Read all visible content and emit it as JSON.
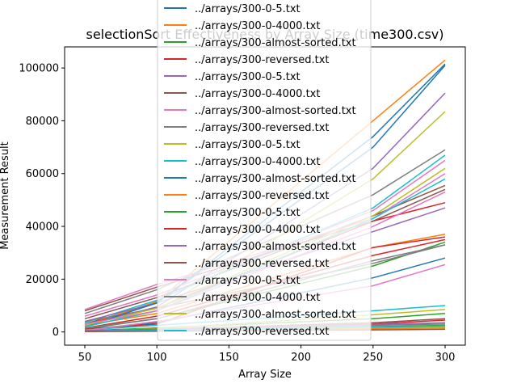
{
  "chart_data": {
    "type": "line",
    "title": "selectionSort Effectiveness by Array Size (time300.csv)",
    "xlabel": "Array Size",
    "ylabel": "Measurement Result",
    "x": [
      50,
      100,
      250,
      300
    ],
    "xlim": [
      36,
      314
    ],
    "ylim": [
      -5000,
      108000
    ],
    "xticks": [
      50,
      100,
      150,
      200,
      250,
      300
    ],
    "yticks": [
      0,
      20000,
      40000,
      60000,
      80000,
      100000
    ],
    "grid": false,
    "legend_position": "top-center",
    "series": [
      {
        "name": "../arrays/300-0-5.txt",
        "color": "#1f77b4",
        "values": [
          3000,
          11000,
          70000,
          101000
        ]
      },
      {
        "name": "../arrays/300-0-4000.txt",
        "color": "#ff7f0e",
        "values": [
          2500,
          11500,
          80000,
          103000
        ]
      },
      {
        "name": "../arrays/300-almost-sorted.txt",
        "color": "#2ca02c",
        "values": [
          1200,
          5000,
          25000,
          34000
        ]
      },
      {
        "name": "../arrays/300-reversed.txt",
        "color": "#d62728",
        "values": [
          3000,
          9000,
          42000,
          49000
        ]
      },
      {
        "name": "../arrays/300-0-5.txt",
        "color": "#9467bd",
        "values": [
          2500,
          9500,
          62000,
          90500
        ]
      },
      {
        "name": "../arrays/300-0-4000.txt",
        "color": "#8c564b",
        "values": [
          5000,
          13000,
          44000,
          55500
        ]
      },
      {
        "name": "../arrays/300-almost-sorted.txt",
        "color": "#e377c2",
        "values": [
          6000,
          14000,
          46000,
          65000
        ]
      },
      {
        "name": "../arrays/300-reversed.txt",
        "color": "#7f7f7f",
        "values": [
          7000,
          16000,
          52000,
          69000
        ]
      },
      {
        "name": "../arrays/300-0-5.txt",
        "color": "#bcbd22",
        "values": [
          2000,
          8000,
          58000,
          83500
        ]
      },
      {
        "name": "../arrays/300-0-4000.txt",
        "color": "#17becf",
        "values": [
          3500,
          12000,
          47000,
          67000
        ]
      },
      {
        "name": "../arrays/300-almost-sorted.txt",
        "color": "#1f77b4",
        "values": [
          1000,
          3500,
          20500,
          28000
        ]
      },
      {
        "name": "../arrays/300-reversed.txt",
        "color": "#ff7f0e",
        "values": [
          2500,
          7000,
          32000,
          37000
        ]
      },
      {
        "name": "../arrays/300-0-5.txt",
        "color": "#2ca02c",
        "values": [
          500,
          1500,
          5000,
          7000
        ]
      },
      {
        "name": "../arrays/300-0-4000.txt",
        "color": "#d62728",
        "values": [
          1000,
          3000,
          32000,
          36000
        ]
      },
      {
        "name": "../arrays/300-almost-sorted.txt",
        "color": "#9467bd",
        "values": [
          4000,
          11000,
          38000,
          47000
        ]
      },
      {
        "name": "../arrays/300-reversed.txt",
        "color": "#8c564b",
        "values": [
          8000,
          17000,
          42000,
          54000
        ]
      },
      {
        "name": "../arrays/300-0-5.txt",
        "color": "#e377c2",
        "values": [
          8500,
          18000,
          43000,
          60000
        ]
      },
      {
        "name": "../arrays/300-0-4000.txt",
        "color": "#7f7f7f",
        "values": [
          4000,
          9000,
          26000,
          33000
        ]
      },
      {
        "name": "../arrays/300-almost-sorted.txt",
        "color": "#bcbd22",
        "values": [
          500,
          1200,
          6500,
          8500
        ]
      },
      {
        "name": "../arrays/300-reversed.txt",
        "color": "#17becf",
        "values": [
          800,
          2500,
          8000,
          10000
        ]
      },
      {
        "name": "",
        "color": "#1f77b4",
        "values": [
          2000,
          11000,
          74000,
          101500
        ]
      },
      {
        "name": "",
        "color": "#e377c2",
        "values": [
          500,
          4000,
          17500,
          25500
        ]
      },
      {
        "name": "",
        "color": "#d62728",
        "values": [
          300,
          800,
          3000,
          4500
        ]
      },
      {
        "name": "",
        "color": "#7f7f7f",
        "values": [
          300,
          700,
          2500,
          3000
        ]
      },
      {
        "name": "",
        "color": "#bcbd22",
        "values": [
          200,
          500,
          1500,
          2000
        ]
      },
      {
        "name": "",
        "color": "#8c564b",
        "values": [
          500,
          1000,
          3500,
          5000
        ]
      },
      {
        "name": "",
        "color": "#2ca02c",
        "values": [
          300,
          600,
          2000,
          2500
        ]
      },
      {
        "name": "",
        "color": "#9467bd",
        "values": [
          400,
          900,
          2800,
          3500
        ]
      },
      {
        "name": "",
        "color": "#ff7f0e",
        "values": [
          200,
          500,
          1200,
          1500
        ]
      },
      {
        "name": "",
        "color": "#17becf",
        "values": [
          300,
          600,
          1800,
          2300
        ]
      },
      {
        "name": "",
        "color": "#8c564b",
        "values": [
          100,
          300,
          800,
          1000
        ]
      },
      {
        "name": "",
        "color": "#d62728",
        "values": [
          1500,
          6000,
          29000,
          35000
        ]
      },
      {
        "name": "",
        "color": "#17becf",
        "values": [
          2000,
          8000,
          43000,
          58000
        ]
      },
      {
        "name": "",
        "color": "#bcbd22",
        "values": [
          2500,
          9000,
          44000,
          62000
        ]
      },
      {
        "name": "",
        "color": "#e377c2",
        "values": [
          3000,
          8000,
          40000,
          53000
        ]
      },
      {
        "name": "",
        "color": "#7f7f7f",
        "values": [
          1500,
          5000,
          27000,
          33000
        ]
      }
    ]
  }
}
